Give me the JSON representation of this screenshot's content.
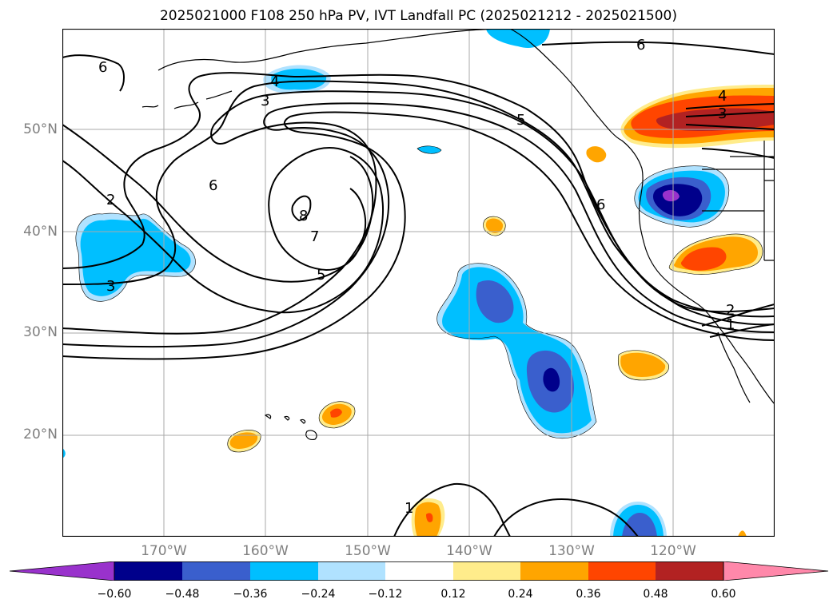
{
  "title": "2025021000 F108 250 hPa PV, IVT Landfall PC (2025021212 - 2025021500)",
  "lat_labels": [
    "50°N",
    "40°N",
    "30°N",
    "20°N"
  ],
  "lon_labels": [
    "170°W",
    "160°W",
    "150°W",
    "140°W",
    "130°W",
    "120°W"
  ],
  "contour_labels": [
    "6",
    "4",
    "3",
    "2",
    "3",
    "6",
    "8",
    "7",
    "5",
    "5",
    "6",
    "6",
    "4",
    "3",
    "2",
    "1",
    "1"
  ],
  "colorbar": {
    "ticks": [
      "−0.60",
      "−0.48",
      "−0.36",
      "−0.24",
      "−0.12",
      "0.12",
      "0.24",
      "0.36",
      "0.48",
      "0.60"
    ],
    "colors": {
      "under": "#9932cc",
      "c1": "#00008b",
      "c2": "#3a5fcd",
      "c3": "#00bfff",
      "c4": "#b0e2ff",
      "c5": "#ffffff",
      "c6": "#ffec8b",
      "c7": "#ffa500",
      "c8": "#ff4500",
      "c9": "#b22222",
      "over": "#ff88aa"
    }
  }
}
